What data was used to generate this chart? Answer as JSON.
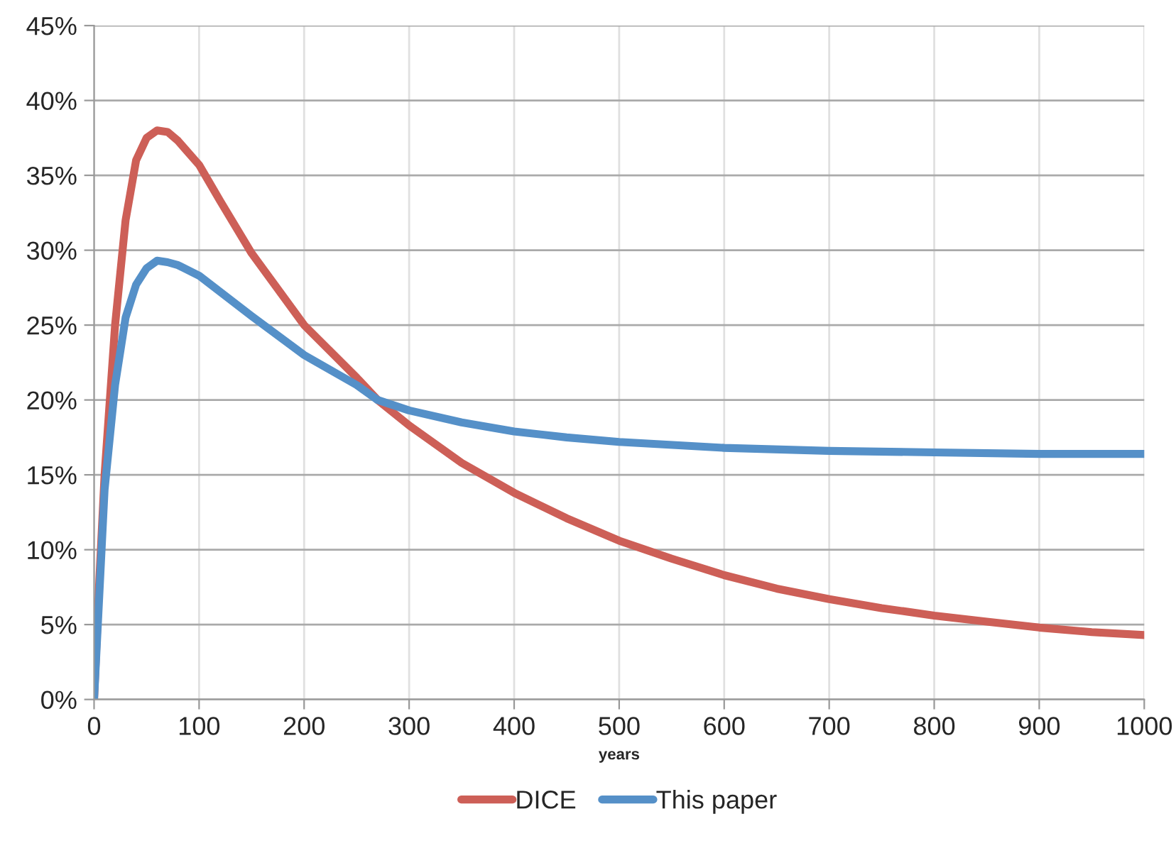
{
  "chart_data": {
    "type": "line",
    "xlabel": "years",
    "xlim": [
      0,
      1000
    ],
    "xticks": [
      0,
      100,
      200,
      300,
      400,
      500,
      600,
      700,
      800,
      900,
      1000
    ],
    "ylim": [
      0,
      45
    ],
    "yticks": [
      {
        "value": 0,
        "label": "0%"
      },
      {
        "value": 5,
        "label": "5%"
      },
      {
        "value": 10,
        "label": "10%"
      },
      {
        "value": 15,
        "label": "15%"
      },
      {
        "value": 20,
        "label": "20%"
      },
      {
        "value": 25,
        "label": "25%"
      },
      {
        "value": 30,
        "label": "30%"
      },
      {
        "value": 35,
        "label": "35%"
      },
      {
        "value": 40,
        "label": "40%"
      },
      {
        "value": 45,
        "label": "45%"
      }
    ],
    "grid": true,
    "legend": "bottom",
    "marker": "none",
    "line_style": "solid",
    "series": [
      {
        "name": "DICE",
        "color": "#cd5f57",
        "x": [
          0,
          5,
          10,
          20,
          30,
          40,
          50,
          60,
          70,
          80,
          100,
          120,
          150,
          200,
          250,
          270,
          300,
          350,
          400,
          450,
          500,
          550,
          600,
          650,
          700,
          750,
          800,
          850,
          900,
          950,
          1000
        ],
        "values": [
          0,
          8,
          15,
          25,
          32,
          36,
          37.5,
          38,
          37.9,
          37.3,
          35.7,
          33.3,
          29.8,
          25,
          21.5,
          20,
          18.3,
          15.8,
          13.8,
          12.1,
          10.6,
          9.4,
          8.3,
          7.4,
          6.7,
          6.1,
          5.6,
          5.2,
          4.8,
          4.5,
          4.3
        ]
      },
      {
        "name": "This paper",
        "color": "#5590c8",
        "x": [
          0,
          5,
          10,
          20,
          30,
          40,
          50,
          60,
          70,
          80,
          100,
          150,
          200,
          250,
          270,
          300,
          350,
          400,
          450,
          500,
          600,
          700,
          800,
          900,
          1000
        ],
        "values": [
          0,
          7,
          14,
          21,
          25.5,
          27.7,
          28.8,
          29.3,
          29.2,
          29,
          28.3,
          25.6,
          23,
          21,
          20,
          19.3,
          18.5,
          17.9,
          17.5,
          17.2,
          16.8,
          16.6,
          16.5,
          16.4,
          16.4
        ]
      }
    ]
  }
}
